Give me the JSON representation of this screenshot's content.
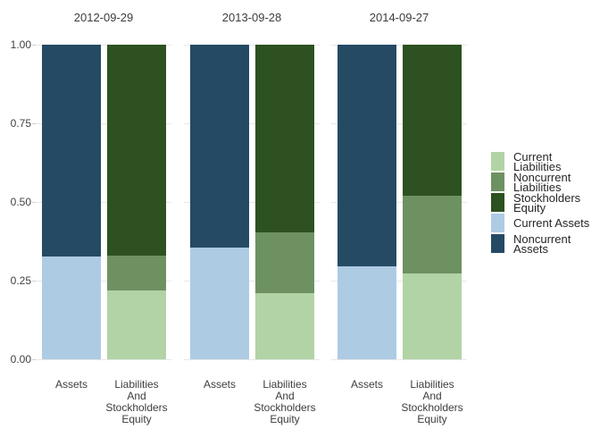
{
  "chart_data": {
    "type": "bar",
    "subtype": "normalized-stacked-faceted",
    "title": "",
    "xlabel": "",
    "ylabel": "",
    "ylim": [
      0,
      1
    ],
    "grid": "major-horizontal",
    "legend_position": "right",
    "y_axis": {
      "ticks": [
        {
          "label": "1.00",
          "value": 1.0
        },
        {
          "label": "0.75",
          "value": 0.75
        },
        {
          "label": "0.50",
          "value": 0.5
        },
        {
          "label": "0.25",
          "value": 0.25
        },
        {
          "label": "0.00",
          "value": 0.0
        }
      ]
    },
    "facets": [
      {
        "title": "2012-09-29",
        "bars": [
          {
            "x_label": "Assets",
            "segments": [
              {
                "name": "Noncurrent Assets",
                "color_key": "noncurrent_assets",
                "value": 0.673
              },
              {
                "name": "Current Assets",
                "color_key": "current_assets",
                "value": 0.327
              }
            ]
          },
          {
            "x_label": "Liabilities\nAnd\nStockholders\nEquity",
            "segments": [
              {
                "name": "Stockholders Equity",
                "color_key": "stockholders_equity",
                "value": 0.671
              },
              {
                "name": "Noncurrent Liabilities",
                "color_key": "noncurrent_liabilities",
                "value": 0.11
              },
              {
                "name": "Current Liabilities",
                "color_key": "current_liabilities",
                "value": 0.219
              }
            ]
          }
        ]
      },
      {
        "title": "2013-09-28",
        "bars": [
          {
            "x_label": "Assets",
            "segments": [
              {
                "name": "Noncurrent Assets",
                "color_key": "noncurrent_assets",
                "value": 0.646
              },
              {
                "name": "Current Assets",
                "color_key": "current_assets",
                "value": 0.354
              }
            ]
          },
          {
            "x_label": "Liabilities\nAnd\nStockholders\nEquity",
            "segments": [
              {
                "name": "Stockholders Equity",
                "color_key": "stockholders_equity",
                "value": 0.597
              },
              {
                "name": "Noncurrent Liabilities",
                "color_key": "noncurrent_liabilities",
                "value": 0.192
              },
              {
                "name": "Current Liabilities",
                "color_key": "current_liabilities",
                "value": 0.211
              }
            ]
          }
        ]
      },
      {
        "title": "2014-09-27",
        "bars": [
          {
            "x_label": "Assets",
            "segments": [
              {
                "name": "Noncurrent Assets",
                "color_key": "noncurrent_assets",
                "value": 0.704
              },
              {
                "name": "Current Assets",
                "color_key": "current_assets",
                "value": 0.296
              }
            ]
          },
          {
            "x_label": "Liabilities\nAnd\nStockholders\nEquity",
            "segments": [
              {
                "name": "Stockholders Equity",
                "color_key": "stockholders_equity",
                "value": 0.481
              },
              {
                "name": "Noncurrent Liabilities",
                "color_key": "noncurrent_liabilities",
                "value": 0.245
              },
              {
                "name": "Current Liabilities",
                "color_key": "current_liabilities",
                "value": 0.274
              }
            ]
          }
        ]
      }
    ],
    "legend": {
      "items": [
        {
          "label": "Current\nLiabilities",
          "color_key": "current_liabilities"
        },
        {
          "label": "Noncurrent\nLiabilities",
          "color_key": "noncurrent_liabilities"
        },
        {
          "label": "Stockholders\nEquity",
          "color_key": "stockholders_equity"
        },
        {
          "label": "Current Assets",
          "color_key": "current_assets"
        },
        {
          "label": "Noncurrent\nAssets",
          "color_key": "noncurrent_assets"
        }
      ]
    },
    "colors": {
      "current_liabilities": "#B2D3A6",
      "noncurrent_liabilities": "#6E9162",
      "stockholders_equity": "#2D5120",
      "current_assets": "#AECBE4",
      "noncurrent_assets": "#254A64",
      "gridline": "#E7E7E7",
      "tick_mark": "#CFCFCF",
      "text": "#3D3D3D"
    }
  }
}
